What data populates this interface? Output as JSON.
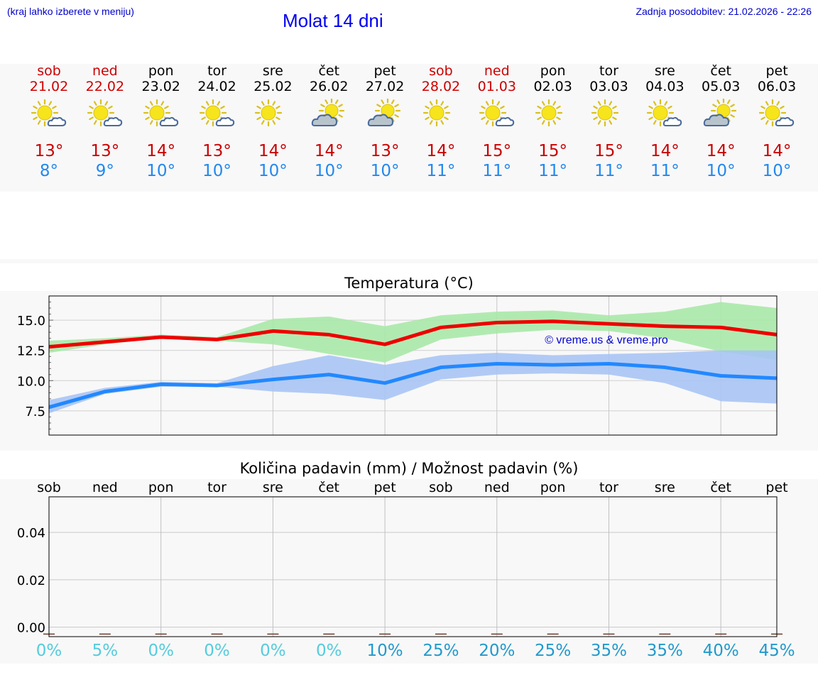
{
  "header": {
    "hint": "(kraj lahko izberete v meniju)",
    "title": "Molat 14 dni",
    "updated": "Zadnja posodobitev: 21.02.2026 - 22:26"
  },
  "days": [
    {
      "name": "sob",
      "date": "21.02",
      "weekend": true,
      "icon": "sun-cloud-icon",
      "tmax": "13°",
      "tmin": "8°"
    },
    {
      "name": "ned",
      "date": "22.02",
      "weekend": true,
      "icon": "sun-cloud-icon",
      "tmax": "13°",
      "tmin": "9°"
    },
    {
      "name": "pon",
      "date": "23.02",
      "weekend": false,
      "icon": "sun-cloud-icon",
      "tmax": "14°",
      "tmin": "10°"
    },
    {
      "name": "tor",
      "date": "24.02",
      "weekend": false,
      "icon": "sun-cloud-icon",
      "tmax": "13°",
      "tmin": "10°"
    },
    {
      "name": "sre",
      "date": "25.02",
      "weekend": false,
      "icon": "sun-icon",
      "tmax": "14°",
      "tmin": "10°"
    },
    {
      "name": "čet",
      "date": "26.02",
      "weekend": false,
      "icon": "cloud-sun-icon",
      "tmax": "14°",
      "tmin": "10°"
    },
    {
      "name": "pet",
      "date": "27.02",
      "weekend": false,
      "icon": "cloud-sun-icon",
      "tmax": "13°",
      "tmin": "10°"
    },
    {
      "name": "sob",
      "date": "28.02",
      "weekend": true,
      "icon": "sun-icon",
      "tmax": "14°",
      "tmin": "11°"
    },
    {
      "name": "ned",
      "date": "01.03",
      "weekend": true,
      "icon": "sun-cloud-icon",
      "tmax": "15°",
      "tmin": "11°"
    },
    {
      "name": "pon",
      "date": "02.03",
      "weekend": false,
      "icon": "sun-icon",
      "tmax": "15°",
      "tmin": "11°"
    },
    {
      "name": "tor",
      "date": "03.03",
      "weekend": false,
      "icon": "sun-icon",
      "tmax": "15°",
      "tmin": "11°"
    },
    {
      "name": "sre",
      "date": "04.03",
      "weekend": false,
      "icon": "sun-cloud-icon",
      "tmax": "14°",
      "tmin": "11°"
    },
    {
      "name": "čet",
      "date": "05.03",
      "weekend": false,
      "icon": "cloud-sun-icon",
      "tmax": "14°",
      "tmin": "10°"
    },
    {
      "name": "pet",
      "date": "06.03",
      "weekend": false,
      "icon": "sun-cloud-icon",
      "tmax": "14°",
      "tmin": "10°"
    }
  ],
  "colors": {
    "max": "#ee0000",
    "min": "#2288ff",
    "max_band": "#a8e8a8",
    "min_band": "#a8c4f4",
    "pct_low": "#55ccdd",
    "pct_high": "#2299cc"
  },
  "chart_data": [
    {
      "type": "line",
      "title": "Temperatura (°C)",
      "watermark": "© vreme.us & vreme.pro",
      "ylim": [
        5.5,
        17.0
      ],
      "yticks": [
        "15.0",
        "12.5",
        "10.0",
        "7.5"
      ],
      "ytick_values": [
        15.0,
        12.5,
        10.0,
        7.5
      ],
      "x": [
        0,
        1,
        2,
        3,
        4,
        5,
        6,
        7,
        8,
        9,
        10,
        11,
        12,
        13
      ],
      "series": [
        {
          "name": "max",
          "values": [
            12.8,
            13.2,
            13.6,
            13.4,
            14.1,
            13.8,
            13.0,
            14.4,
            14.8,
            14.9,
            14.7,
            14.5,
            14.4,
            13.8
          ],
          "band_low": [
            12.3,
            13.0,
            13.5,
            13.3,
            13.0,
            12.2,
            11.5,
            13.4,
            13.9,
            14.2,
            14.1,
            13.5,
            12.4,
            11.7
          ],
          "band_high": [
            13.3,
            13.5,
            13.8,
            13.6,
            15.1,
            15.3,
            14.5,
            15.4,
            15.7,
            15.8,
            15.4,
            15.7,
            16.5,
            16.0
          ]
        },
        {
          "name": "min",
          "values": [
            7.8,
            9.1,
            9.7,
            9.6,
            10.1,
            10.5,
            9.8,
            11.1,
            11.4,
            11.3,
            11.4,
            11.1,
            10.4,
            10.2
          ],
          "band_low": [
            7.3,
            8.9,
            9.5,
            9.5,
            9.1,
            8.9,
            8.4,
            10.1,
            10.5,
            10.6,
            10.5,
            9.8,
            8.3,
            8.1
          ],
          "band_high": [
            8.4,
            9.4,
            9.9,
            9.8,
            11.2,
            12.1,
            11.3,
            12.1,
            12.3,
            12.1,
            12.2,
            12.3,
            12.5,
            12.5
          ]
        }
      ]
    },
    {
      "type": "bar",
      "title": "Količina padavin (mm) / Možnost padavin (%)",
      "categories": [
        "sob",
        "ned",
        "pon",
        "tor",
        "sre",
        "čet",
        "pet",
        "sob",
        "ned",
        "pon",
        "tor",
        "sre",
        "čet",
        "pet"
      ],
      "values": [
        0,
        0,
        0,
        0,
        0,
        0,
        0,
        0,
        0,
        0,
        0,
        0,
        0,
        0
      ],
      "ylim": [
        -0.004,
        0.055
      ],
      "yticks": [
        "0.04",
        "0.02",
        "0.00"
      ],
      "ytick_values": [
        0.04,
        0.02,
        0.0
      ],
      "probability_labels": [
        "0%",
        "5%",
        "0%",
        "0%",
        "0%",
        "0%",
        "10%",
        "25%",
        "20%",
        "25%",
        "35%",
        "35%",
        "40%",
        "45%"
      ],
      "probability": [
        0,
        5,
        0,
        0,
        0,
        0,
        10,
        25,
        20,
        25,
        35,
        35,
        40,
        45
      ]
    }
  ]
}
